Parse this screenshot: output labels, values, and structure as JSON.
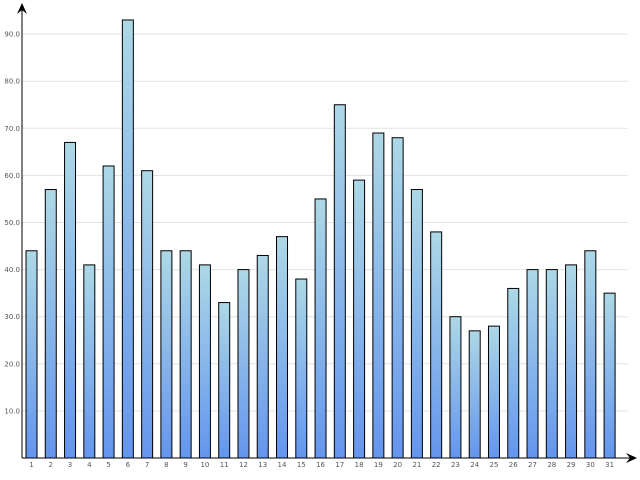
{
  "chart_data": {
    "type": "bar",
    "categories": [
      "1",
      "2",
      "3",
      "4",
      "5",
      "6",
      "7",
      "8",
      "9",
      "10",
      "11",
      "12",
      "13",
      "14",
      "15",
      "16",
      "17",
      "18",
      "19",
      "20",
      "21",
      "22",
      "23",
      "24",
      "25",
      "26",
      "27",
      "28",
      "29",
      "30",
      "31"
    ],
    "series": [
      {
        "values": [
          44,
          57,
          67,
          41,
          62,
          93,
          61,
          44,
          44,
          41,
          33,
          40,
          43,
          47,
          38,
          55,
          75,
          59,
          69,
          68,
          57,
          48,
          30,
          27,
          28,
          36,
          40,
          40,
          41,
          44,
          35
        ]
      }
    ],
    "yticks": [
      "10.0",
      "20.0",
      "30.0",
      "40.0",
      "50.0",
      "60.0",
      "70.0",
      "80.0",
      "90.0"
    ],
    "title": "",
    "xlabel": "",
    "ylabel": "",
    "ylim": [
      0,
      96
    ],
    "grid": true,
    "legend": "none",
    "colors": {
      "bar_top": "#add8e6",
      "bar_bottom": "#6495ed",
      "bar_stroke": "#000000",
      "grid": "#e3e3e3",
      "axis": "#000000"
    }
  }
}
